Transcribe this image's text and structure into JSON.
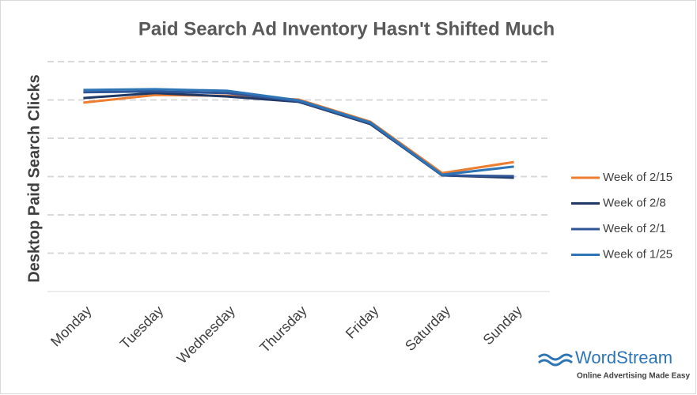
{
  "chart_data": {
    "type": "line",
    "title": "Paid Search Ad Inventory Hasn't Shifted Much",
    "y_label": "Desktop Paid Search Clicks",
    "categories": [
      "Monday",
      "Tuesday",
      "Wednesday",
      "Thursday",
      "Friday",
      "Saturday",
      "Sunday"
    ],
    "series": [
      {
        "name": "Week of 2/15",
        "color": "#ed7d31",
        "values": [
          4.93,
          5.13,
          5.11,
          5.01,
          4.43,
          3.09,
          3.38
        ]
      },
      {
        "name": "Week of 2/8",
        "color": "#203864",
        "values": [
          5.05,
          5.18,
          5.09,
          4.95,
          4.37,
          3.03,
          2.97
        ]
      },
      {
        "name": "Week of 2/1",
        "color": "#2f5597",
        "values": [
          5.2,
          5.22,
          5.18,
          4.97,
          4.39,
          3.03,
          3.01
        ]
      },
      {
        "name": "Week of 1/25",
        "color": "#2e75b6",
        "values": [
          5.26,
          5.28,
          5.24,
          4.99,
          4.41,
          3.05,
          3.26
        ]
      }
    ],
    "ylim": [
      0,
      6
    ],
    "gridlines": [
      1,
      2,
      3,
      4,
      5,
      6
    ],
    "grid": true,
    "legend": "right"
  },
  "branding": {
    "name": "WordStream",
    "tagline": "Online Advertising Made Easy"
  }
}
